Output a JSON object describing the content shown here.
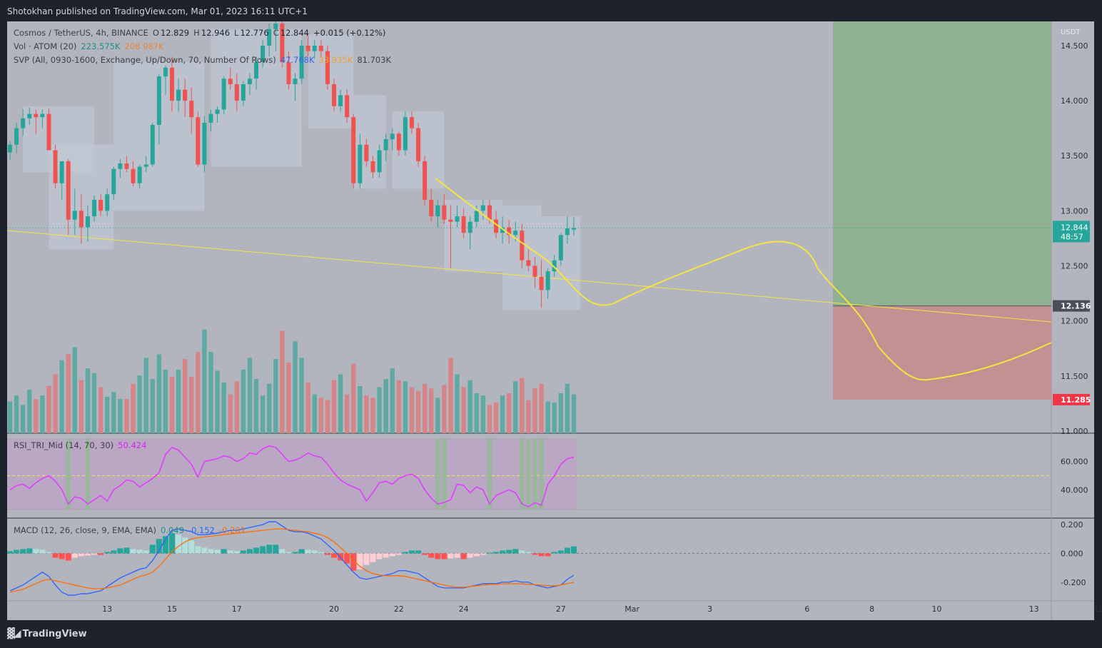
{
  "header": {
    "text": "Shotokhan published on TradingView.com, Mar 01, 2023 16:11 UTC+1"
  },
  "footer": {
    "brand": "TradingView"
  },
  "legend": {
    "symbol": "Cosmos / TetherUS, 4h, BINANCE",
    "open_label": "O",
    "open": "12.829",
    "high_label": "H",
    "high": "12.946",
    "low_label": "L",
    "low": "12.776",
    "close_label": "C",
    "close": "12.844",
    "change": "+0.015 (+0.12%)",
    "vol_label": "Vol · ATOM (20)",
    "vol_value": "223.575K",
    "vol_ma": "208.987K",
    "svp_label": "SVP (All, 0930-1600, Exchange, Up/Down, 70, Number Of Rows)",
    "svp_up": "47.768K",
    "svp_down": "33.935K",
    "svp_total": "81.703K",
    "rsi_label": "RSI_TRI_Mid (14, 70, 30)",
    "rsi_value": "50.424",
    "macd_label": "MACD (12, 26, close, 9, EMA, EMA)",
    "macd_hist": "0.049",
    "macd_line": "-0.152",
    "macd_signal": "-0.201"
  },
  "colors": {
    "up": "#26a69a",
    "down": "#ef5350",
    "pane_bg": "#b2b5be",
    "target": "#8fb192",
    "stop": "#c29293",
    "yellow": "#f5e342",
    "rsi": "#e040fb",
    "macd": "#2962ff",
    "signal": "#ff6d00"
  },
  "chart_data": {
    "type": "candlestick",
    "price_axis": {
      "unit": "USDT",
      "ticks": [
        "14.500",
        "14.000",
        "13.500",
        "13.000",
        "12.500",
        "12.000",
        "11.500",
        "11.000"
      ],
      "tick_values": [
        14.5,
        14.0,
        13.5,
        13.0,
        12.5,
        12.0,
        11.5,
        11.0
      ],
      "ylim": [
        10.98,
        14.72
      ]
    },
    "time_axis": {
      "ticks": [
        "13",
        "15",
        "17",
        "20",
        "22",
        "24",
        "27",
        "Mar",
        "3",
        "6",
        "8",
        "10",
        "13",
        "15"
      ],
      "tick_bars": [
        15,
        25,
        35,
        50,
        60,
        70,
        85,
        96,
        108,
        123,
        133,
        143,
        158,
        168
      ]
    },
    "current_price": {
      "value": "12.844",
      "countdown": "48:57",
      "num": 12.844
    },
    "position": {
      "entry": "12.136",
      "entry_value": 12.136,
      "stop": "11.285",
      "stop_value": 11.285,
      "target_value": 14.72,
      "start_bar": 127,
      "end_bar": 165
    },
    "ohlc": [
      [
        13.53,
        13.63,
        13.46,
        13.6
      ],
      [
        13.6,
        13.8,
        13.52,
        13.75
      ],
      [
        13.75,
        13.92,
        13.68,
        13.84
      ],
      [
        13.84,
        13.94,
        13.78,
        13.88
      ],
      [
        13.88,
        13.92,
        13.7,
        13.85
      ],
      [
        13.85,
        13.92,
        13.75,
        13.88
      ],
      [
        13.88,
        13.93,
        13.55,
        13.55
      ],
      [
        13.55,
        13.6,
        13.2,
        13.25
      ],
      [
        13.25,
        13.45,
        13.1,
        13.45
      ],
      [
        13.45,
        13.47,
        12.78,
        12.92
      ],
      [
        12.92,
        13.2,
        12.78,
        13.0
      ],
      [
        13.0,
        13.15,
        12.7,
        12.85
      ],
      [
        12.85,
        13.05,
        12.72,
        12.95
      ],
      [
        12.95,
        13.14,
        12.9,
        13.1
      ],
      [
        13.1,
        13.15,
        12.95,
        13.0
      ],
      [
        13.0,
        13.2,
        12.95,
        13.15
      ],
      [
        13.15,
        13.4,
        13.1,
        13.38
      ],
      [
        13.38,
        13.47,
        13.3,
        13.43
      ],
      [
        13.43,
        13.5,
        13.35,
        13.38
      ],
      [
        13.38,
        13.45,
        13.22,
        13.25
      ],
      [
        13.25,
        13.42,
        13.2,
        13.4
      ],
      [
        13.4,
        13.5,
        13.35,
        13.42
      ],
      [
        13.42,
        13.8,
        13.4,
        13.78
      ],
      [
        13.78,
        14.24,
        13.6,
        14.22
      ],
      [
        14.22,
        14.32,
        14.05,
        14.3
      ],
      [
        14.3,
        14.4,
        13.9,
        14.0
      ],
      [
        14.0,
        14.2,
        13.9,
        14.1
      ],
      [
        14.1,
        14.2,
        13.85,
        14.0
      ],
      [
        14.0,
        14.12,
        13.7,
        13.85
      ],
      [
        13.85,
        13.9,
        13.4,
        13.42
      ],
      [
        13.42,
        13.86,
        13.35,
        13.8
      ],
      [
        13.8,
        13.92,
        13.72,
        13.88
      ],
      [
        13.88,
        13.95,
        13.8,
        13.92
      ],
      [
        13.92,
        14.22,
        13.88,
        14.2
      ],
      [
        14.2,
        14.3,
        14.1,
        14.15
      ],
      [
        14.15,
        14.25,
        13.9,
        14.0
      ],
      [
        14.0,
        14.18,
        13.95,
        14.15
      ],
      [
        14.15,
        14.25,
        14.05,
        14.2
      ],
      [
        14.2,
        14.4,
        14.1,
        14.35
      ],
      [
        14.35,
        14.55,
        14.3,
        14.5
      ],
      [
        14.5,
        14.7,
        14.4,
        14.65
      ],
      [
        14.65,
        14.72,
        14.45,
        14.7
      ],
      [
        14.7,
        14.72,
        14.3,
        14.35
      ],
      [
        14.35,
        14.45,
        14.1,
        14.15
      ],
      [
        14.15,
        14.25,
        14.0,
        14.2
      ],
      [
        14.2,
        14.55,
        14.15,
        14.5
      ],
      [
        14.5,
        14.6,
        14.4,
        14.45
      ],
      [
        14.45,
        14.55,
        14.38,
        14.5
      ],
      [
        14.5,
        14.55,
        14.4,
        14.45
      ],
      [
        14.45,
        14.5,
        14.1,
        14.15
      ],
      [
        14.15,
        14.2,
        13.9,
        13.95
      ],
      [
        13.95,
        14.1,
        13.9,
        14.05
      ],
      [
        14.05,
        14.1,
        13.8,
        13.85
      ],
      [
        13.85,
        13.88,
        13.2,
        13.25
      ],
      [
        13.25,
        13.7,
        13.2,
        13.6
      ],
      [
        13.6,
        13.65,
        13.4,
        13.45
      ],
      [
        13.45,
        13.5,
        13.3,
        13.35
      ],
      [
        13.35,
        13.6,
        13.3,
        13.55
      ],
      [
        13.55,
        13.7,
        13.45,
        13.65
      ],
      [
        13.65,
        13.75,
        13.55,
        13.7
      ],
      [
        13.7,
        13.72,
        13.5,
        13.55
      ],
      [
        13.55,
        13.9,
        13.5,
        13.85
      ],
      [
        13.85,
        13.9,
        13.7,
        13.75
      ],
      [
        13.75,
        13.8,
        13.4,
        13.45
      ],
      [
        13.45,
        13.5,
        13.05,
        13.1
      ],
      [
        13.1,
        13.2,
        12.9,
        12.95
      ],
      [
        12.95,
        13.1,
        12.85,
        13.05
      ],
      [
        13.05,
        13.15,
        12.88,
        12.92
      ],
      [
        12.92,
        13.05,
        12.48,
        12.9
      ],
      [
        12.9,
        13.05,
        12.85,
        12.95
      ],
      [
        12.95,
        13.02,
        12.75,
        12.8
      ],
      [
        12.8,
        12.95,
        12.65,
        12.9
      ],
      [
        12.9,
        13.05,
        12.85,
        13.0
      ],
      [
        13.0,
        13.1,
        12.92,
        13.05
      ],
      [
        13.05,
        13.1,
        12.88,
        12.92
      ],
      [
        12.92,
        13.0,
        12.75,
        12.8
      ],
      [
        12.8,
        12.95,
        12.7,
        12.85
      ],
      [
        12.85,
        12.92,
        12.7,
        12.78
      ],
      [
        12.78,
        12.9,
        12.72,
        12.82
      ],
      [
        12.82,
        12.88,
        12.48,
        12.55
      ],
      [
        12.55,
        12.65,
        12.45,
        12.5
      ],
      [
        12.5,
        12.58,
        12.3,
        12.4
      ],
      [
        12.4,
        12.55,
        12.12,
        12.28
      ],
      [
        12.28,
        12.48,
        12.2,
        12.45
      ],
      [
        12.45,
        12.6,
        12.4,
        12.55
      ],
      [
        12.55,
        12.8,
        12.5,
        12.78
      ],
      [
        12.78,
        12.95,
        12.7,
        12.84
      ],
      [
        12.829,
        12.946,
        12.776,
        12.844
      ]
    ],
    "rsi": {
      "ticks": [
        "60.000",
        "40.000"
      ],
      "tick_values": [
        60,
        40
      ],
      "ylim": [
        20,
        80
      ],
      "mid_level": 50,
      "values": [
        40,
        43,
        44,
        41,
        45,
        48,
        50,
        46,
        40,
        30,
        35,
        34,
        30,
        33,
        36,
        32,
        40,
        43,
        47,
        46,
        42,
        45,
        48,
        52,
        65,
        70,
        68,
        63,
        58,
        49,
        60,
        61,
        62,
        64,
        63,
        60,
        62,
        66,
        65,
        69,
        71,
        70,
        65,
        60,
        61,
        63,
        66,
        64,
        63,
        58,
        52,
        47,
        44,
        42,
        40,
        32,
        38,
        45,
        46,
        44,
        48,
        50,
        51,
        48,
        40,
        34,
        30,
        31,
        33,
        44,
        43,
        38,
        42,
        40,
        30,
        36,
        38,
        40,
        38,
        30,
        28,
        31,
        29,
        44,
        50,
        58,
        62,
        63
      ]
    },
    "macd": {
      "ticks": [
        "0.200",
        "0.000",
        "-0.200"
      ],
      "tick_values": [
        0.2,
        0.0,
        -0.2
      ],
      "ylim": [
        -0.33,
        0.245
      ],
      "hist": [
        0.015,
        0.025,
        0.03,
        0.035,
        0.03,
        0.025,
        0.01,
        -0.03,
        -0.04,
        -0.05,
        -0.03,
        -0.02,
        -0.015,
        -0.01,
        -0.01,
        0.01,
        0.02,
        0.035,
        0.04,
        0.03,
        0.025,
        0.02,
        0.06,
        0.1,
        0.12,
        0.14,
        0.13,
        0.11,
        0.09,
        0.05,
        0.04,
        0.03,
        0.025,
        0.03,
        0.02,
        0.015,
        0.02,
        0.03,
        0.04,
        0.05,
        0.06,
        0.06,
        0.03,
        0.01,
        0.01,
        0.03,
        0.025,
        0.02,
        0.01,
        -0.01,
        -0.03,
        -0.05,
        -0.07,
        -0.12,
        -0.11,
        -0.08,
        -0.06,
        -0.04,
        -0.03,
        -0.02,
        -0.01,
        0.01,
        0.02,
        0.02,
        -0.01,
        -0.03,
        -0.04,
        -0.04,
        -0.035,
        -0.03,
        -0.04,
        -0.03,
        -0.02,
        -0.01,
        0.005,
        0.01,
        0.02,
        0.025,
        0.03,
        0.02,
        0.01,
        -0.01,
        -0.02,
        -0.02,
        0.01,
        0.02,
        0.04,
        0.049
      ],
      "macd": [
        -0.26,
        -0.24,
        -0.22,
        -0.19,
        -0.16,
        -0.13,
        -0.16,
        -0.22,
        -0.27,
        -0.29,
        -0.29,
        -0.28,
        -0.28,
        -0.27,
        -0.26,
        -0.23,
        -0.2,
        -0.17,
        -0.15,
        -0.13,
        -0.11,
        -0.1,
        -0.05,
        0.02,
        0.1,
        0.16,
        0.17,
        0.16,
        0.15,
        0.13,
        0.13,
        0.135,
        0.14,
        0.15,
        0.16,
        0.16,
        0.17,
        0.18,
        0.19,
        0.2,
        0.22,
        0.22,
        0.19,
        0.16,
        0.15,
        0.15,
        0.14,
        0.12,
        0.1,
        0.06,
        0.02,
        -0.03,
        -0.08,
        -0.13,
        -0.17,
        -0.18,
        -0.17,
        -0.16,
        -0.15,
        -0.14,
        -0.12,
        -0.12,
        -0.13,
        -0.14,
        -0.17,
        -0.2,
        -0.23,
        -0.24,
        -0.24,
        -0.24,
        -0.24,
        -0.23,
        -0.22,
        -0.21,
        -0.21,
        -0.21,
        -0.2,
        -0.2,
        -0.19,
        -0.2,
        -0.2,
        -0.22,
        -0.23,
        -0.24,
        -0.23,
        -0.22,
        -0.18,
        -0.152
      ],
      "signal": [
        -0.27,
        -0.26,
        -0.25,
        -0.23,
        -0.21,
        -0.19,
        -0.18,
        -0.19,
        -0.2,
        -0.21,
        -0.22,
        -0.23,
        -0.24,
        -0.245,
        -0.245,
        -0.24,
        -0.23,
        -0.22,
        -0.2,
        -0.18,
        -0.16,
        -0.15,
        -0.13,
        -0.09,
        -0.04,
        0.01,
        0.05,
        0.08,
        0.1,
        0.11,
        0.115,
        0.12,
        0.125,
        0.13,
        0.135,
        0.14,
        0.145,
        0.15,
        0.155,
        0.16,
        0.165,
        0.17,
        0.17,
        0.165,
        0.16,
        0.155,
        0.15,
        0.14,
        0.13,
        0.11,
        0.08,
        0.04,
        0.0,
        -0.05,
        -0.09,
        -0.12,
        -0.14,
        -0.15,
        -0.155,
        -0.155,
        -0.155,
        -0.16,
        -0.17,
        -0.18,
        -0.19,
        -0.2,
        -0.21,
        -0.22,
        -0.23,
        -0.235,
        -0.235,
        -0.23,
        -0.225,
        -0.22,
        -0.215,
        -0.215,
        -0.212,
        -0.21,
        -0.21,
        -0.212,
        -0.215,
        -0.218,
        -0.22,
        -0.225,
        -0.225,
        -0.22,
        -0.21,
        -0.201
      ]
    },
    "volume_ratio": [
      0.27,
      0.32,
      0.24,
      0.37,
      0.29,
      0.32,
      0.4,
      0.5,
      0.62,
      0.67,
      0.73,
      0.45,
      0.55,
      0.51,
      0.39,
      0.31,
      0.35,
      0.29,
      0.29,
      0.42,
      0.49,
      0.64,
      0.46,
      0.67,
      0.54,
      0.48,
      0.54,
      0.63,
      0.48,
      0.69,
      0.88,
      0.69,
      0.53,
      0.43,
      0.33,
      0.44,
      0.54,
      0.64,
      0.46,
      0.32,
      0.42,
      0.63,
      0.87,
      0.6,
      0.78,
      0.64,
      0.43,
      0.33,
      0.3,
      0.28,
      0.45,
      0.5,
      0.33,
      0.59,
      0.4,
      0.32,
      0.3,
      0.39,
      0.46,
      0.55,
      0.45,
      0.44,
      0.39,
      0.36,
      0.42,
      0.38,
      0.3,
      0.41,
      0.64,
      0.5,
      0.39,
      0.45,
      0.34,
      0.32,
      0.24,
      0.26,
      0.32,
      0.34,
      0.44,
      0.47,
      0.28,
      0.38,
      0.42,
      0.27,
      0.26,
      0.34,
      0.42,
      0.33
    ]
  }
}
